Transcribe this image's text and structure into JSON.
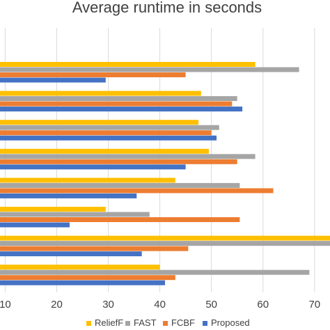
{
  "chart_data": {
    "type": "bar",
    "orientation": "horizontal",
    "title": "Average runtime in seconds",
    "xlabel": "",
    "ylabel": "",
    "xlim": [
      9,
      73
    ],
    "xticks": [
      10,
      20,
      30,
      40,
      50,
      60,
      70
    ],
    "grid": true,
    "legend_position": "bottom",
    "category_count": 8,
    "series": [
      {
        "name": "ReliefF",
        "color": "#FFC000",
        "values": [
          58.5,
          48.0,
          47.5,
          49.5,
          43.0,
          29.5,
          74.0,
          40.0
        ]
      },
      {
        "name": "FAST",
        "color": "#A5A5A5",
        "values": [
          67.0,
          55.0,
          51.5,
          58.5,
          55.5,
          38.0,
          74.0,
          69.0
        ]
      },
      {
        "name": "FCBF",
        "color": "#ED7D31",
        "values": [
          45.0,
          54.0,
          50.0,
          55.0,
          62.0,
          55.5,
          45.5,
          43.0
        ]
      },
      {
        "name": "Proposed",
        "color": "#4472C4",
        "values": [
          29.5,
          56.0,
          51.0,
          45.0,
          35.5,
          22.5,
          36.5,
          41.0
        ]
      }
    ]
  }
}
